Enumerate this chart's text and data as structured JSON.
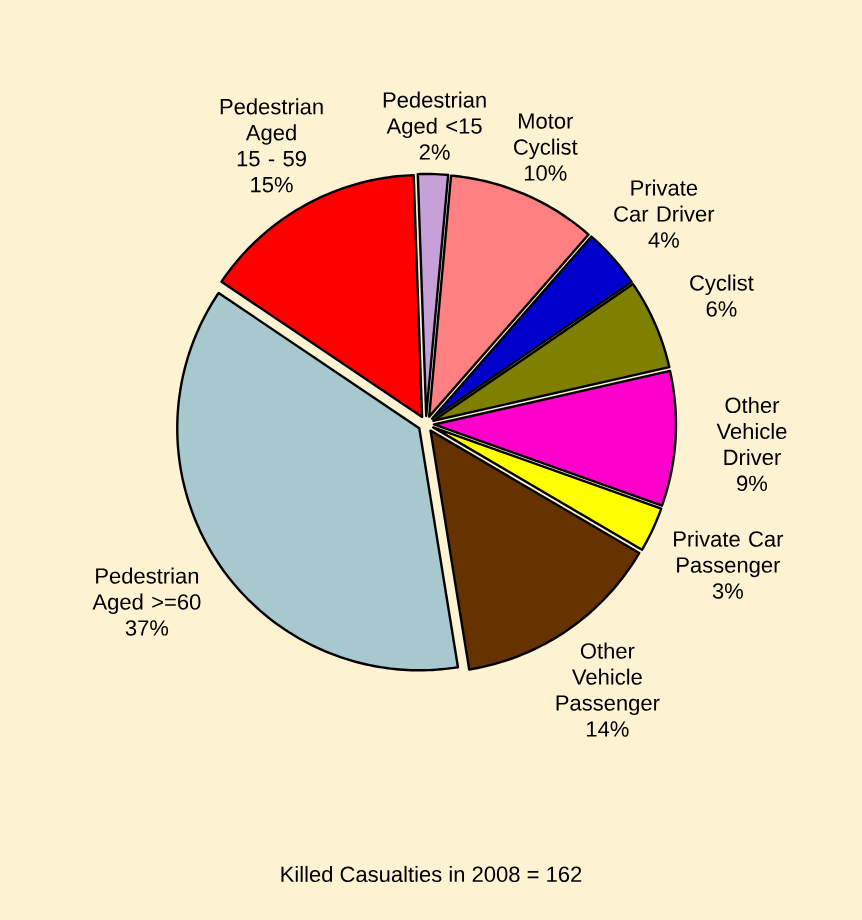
{
  "chart_data": {
    "type": "pie",
    "title": "Killed Casualties in 2008 = 162",
    "categories": [
      "Pedestrian Aged <15",
      "Motor Cyclist",
      "Private Car Driver",
      "Cyclist",
      "Other Vehicle Driver",
      "Private Car Passenger",
      "Other Vehicle Passenger",
      "Pedestrian Aged >=60",
      "Pedestrian Aged 15 - 59"
    ],
    "values": [
      2,
      10,
      4,
      6,
      9,
      3,
      14,
      37,
      15
    ],
    "value_labels": [
      "2%",
      "10%",
      "4%",
      "6%",
      "9%",
      "3%",
      "14%",
      "37%",
      "15%"
    ],
    "colors": [
      "#c8a0d8",
      "#ff8080",
      "#0000cc",
      "#808000",
      "#ff00cc",
      "#ffff00",
      "#663300",
      "#a8c8d0",
      "#ff0000"
    ]
  }
}
